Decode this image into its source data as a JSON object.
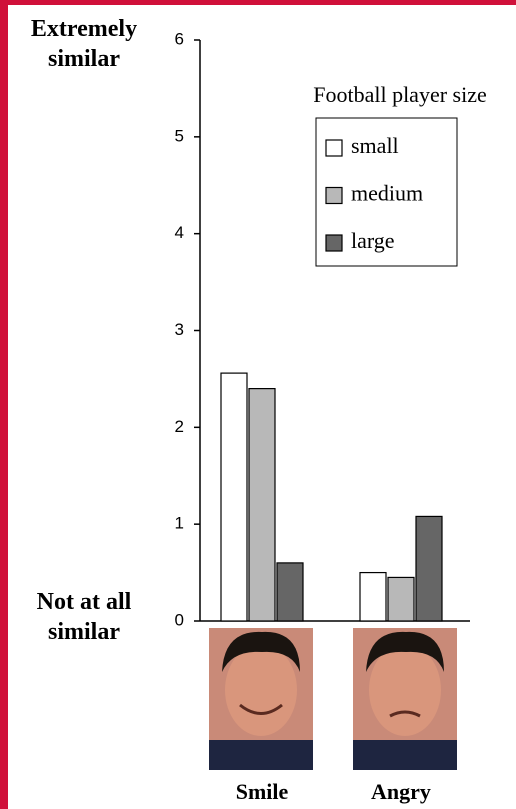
{
  "chart_data": {
    "type": "bar",
    "y_top_label": "Extremely similar",
    "y_bottom_label": "Not at all similar",
    "legend_title": "Football player size",
    "categories": [
      "Smile",
      "Angry"
    ],
    "series": [
      {
        "name": "small",
        "color": "#ffffff",
        "values": [
          2.56,
          0.5
        ]
      },
      {
        "name": "medium",
        "color": "#b8b8b8",
        "values": [
          2.4,
          0.45
        ]
      },
      {
        "name": "large",
        "color": "#666666",
        "values": [
          0.6,
          1.08
        ]
      }
    ],
    "ylim": [
      0,
      6
    ],
    "yticks": [
      0,
      1,
      2,
      3,
      4,
      5,
      6
    ]
  }
}
